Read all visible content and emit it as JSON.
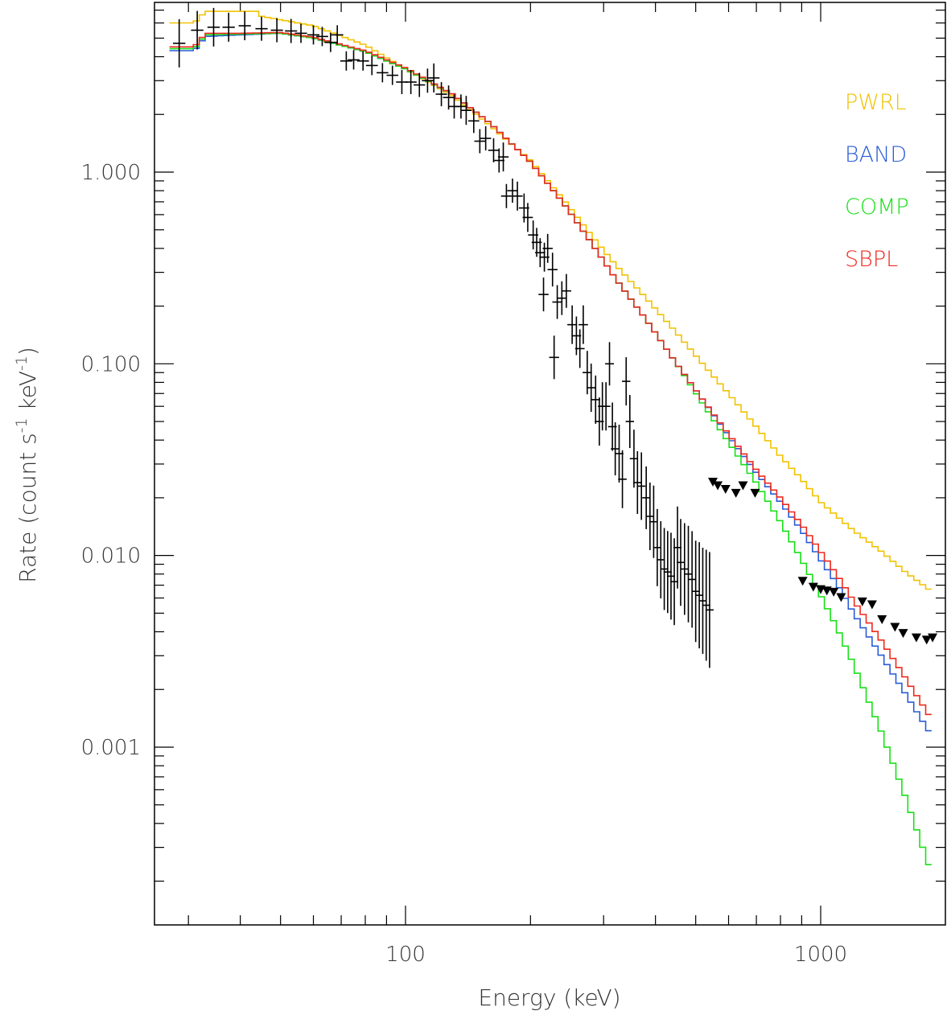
{
  "chart_data": {
    "type": "line",
    "xlabel": "Energy (keV)",
    "ylabel_parts": [
      "Rate (count s",
      "-1",
      " keV",
      "-1",
      ")"
    ],
    "x_scale": "log",
    "y_scale": "log",
    "xlim": [
      27,
      1900
    ],
    "ylim": [
      0.0002,
      7.5
    ],
    "x_ticks": [
      100,
      1000
    ],
    "x_tick_labels": [
      "100",
      "1000"
    ],
    "y_ticks": [
      0.001,
      0.01,
      0.1,
      1.0
    ],
    "y_tick_labels": [
      "0.001",
      "0.010",
      "0.100",
      "1.000"
    ],
    "legend_placement": "top-right",
    "series": [
      {
        "name": "PWRL",
        "color": "#f2c200",
        "points": [
          [
            27,
            6.0
          ],
          [
            31,
            6.0
          ],
          [
            33,
            6.9
          ],
          [
            44,
            6.9
          ],
          [
            45,
            6.5
          ],
          [
            60,
            5.8
          ],
          [
            80,
            4.6
          ],
          [
            100,
            3.45
          ],
          [
            130,
            2.5
          ],
          [
            160,
            1.75
          ],
          [
            200,
            1.15
          ],
          [
            240,
            0.72
          ],
          [
            280,
            0.47
          ],
          [
            320,
            0.33
          ],
          [
            380,
            0.22
          ],
          [
            450,
            0.145
          ],
          [
            520,
            0.1
          ],
          [
            600,
            0.07
          ],
          [
            700,
            0.047
          ],
          [
            800,
            0.033
          ],
          [
            900,
            0.025
          ],
          [
            1000,
            0.019
          ],
          [
            1200,
            0.0135
          ],
          [
            1400,
            0.0105
          ],
          [
            1600,
            0.0082
          ],
          [
            1850,
            0.0065
          ]
        ]
      },
      {
        "name": "BAND",
        "color": "#2a5bd7",
        "points": [
          [
            27,
            4.3
          ],
          [
            31,
            4.3
          ],
          [
            33,
            5.1
          ],
          [
            40,
            5.2
          ],
          [
            50,
            5.3
          ],
          [
            60,
            5.0
          ],
          [
            80,
            4.25
          ],
          [
            100,
            3.45
          ],
          [
            130,
            2.55
          ],
          [
            160,
            1.8
          ],
          [
            200,
            1.13
          ],
          [
            240,
            0.69
          ],
          [
            280,
            0.43
          ],
          [
            320,
            0.28
          ],
          [
            380,
            0.17
          ],
          [
            450,
            0.1
          ],
          [
            520,
            0.065
          ],
          [
            600,
            0.042
          ],
          [
            700,
            0.027
          ],
          [
            800,
            0.019
          ],
          [
            900,
            0.0135
          ],
          [
            1000,
            0.0095
          ],
          [
            1100,
            0.007
          ],
          [
            1200,
            0.005
          ],
          [
            1400,
            0.003
          ],
          [
            1600,
            0.0019
          ],
          [
            1850,
            0.00115
          ]
        ]
      },
      {
        "name": "COMP",
        "color": "#18e018",
        "points": [
          [
            27,
            4.4
          ],
          [
            31,
            4.4
          ],
          [
            33,
            5.2
          ],
          [
            40,
            5.25
          ],
          [
            50,
            5.3
          ],
          [
            60,
            5.0
          ],
          [
            80,
            4.25
          ],
          [
            100,
            3.45
          ],
          [
            130,
            2.55
          ],
          [
            160,
            1.8
          ],
          [
            200,
            1.13
          ],
          [
            240,
            0.69
          ],
          [
            280,
            0.43
          ],
          [
            320,
            0.28
          ],
          [
            380,
            0.17
          ],
          [
            450,
            0.1
          ],
          [
            520,
            0.062
          ],
          [
            600,
            0.039
          ],
          [
            700,
            0.024
          ],
          [
            800,
            0.015
          ],
          [
            900,
            0.0095
          ],
          [
            1000,
            0.0062
          ],
          [
            1100,
            0.0041
          ],
          [
            1200,
            0.0027
          ],
          [
            1400,
            0.0012
          ],
          [
            1600,
            0.00055
          ],
          [
            1850,
            0.00022
          ]
        ]
      },
      {
        "name": "SBPL",
        "color": "#ee2a1e",
        "points": [
          [
            27,
            4.5
          ],
          [
            31,
            4.5
          ],
          [
            33,
            5.3
          ],
          [
            40,
            5.3
          ],
          [
            50,
            5.35
          ],
          [
            60,
            5.05
          ],
          [
            80,
            4.3
          ],
          [
            100,
            3.5
          ],
          [
            130,
            2.55
          ],
          [
            160,
            1.8
          ],
          [
            200,
            1.13
          ],
          [
            240,
            0.69
          ],
          [
            280,
            0.43
          ],
          [
            320,
            0.28
          ],
          [
            380,
            0.17
          ],
          [
            450,
            0.1
          ],
          [
            520,
            0.065
          ],
          [
            600,
            0.043
          ],
          [
            700,
            0.028
          ],
          [
            800,
            0.02
          ],
          [
            900,
            0.0145
          ],
          [
            1000,
            0.0105
          ],
          [
            1100,
            0.0078
          ],
          [
            1200,
            0.0058
          ],
          [
            1400,
            0.0036
          ],
          [
            1600,
            0.0023
          ],
          [
            1850,
            0.0014
          ]
        ]
      }
    ],
    "data_points": [
      [
        28.5,
        4.7,
        0.5,
        0.3
      ],
      [
        31.5,
        5.5,
        0.4,
        0.3
      ],
      [
        34.5,
        5.7,
        0.4,
        0.3
      ],
      [
        37.5,
        5.7,
        0.3,
        0.35
      ],
      [
        41,
        5.8,
        0.3,
        0.4
      ],
      [
        45,
        5.6,
        0.25,
        0.4
      ],
      [
        49,
        5.5,
        0.25,
        0.45
      ],
      [
        53,
        5.45,
        0.25,
        0.45
      ],
      [
        56,
        5.3,
        0.2,
        0.45
      ],
      [
        60,
        5.2,
        0.2,
        0.5
      ],
      [
        63,
        5.1,
        0.2,
        0.55
      ],
      [
        66,
        4.75,
        0.2,
        0.55
      ],
      [
        68.5,
        5.2,
        0.2,
        0.55
      ],
      [
        72,
        3.8,
        0.2,
        0.55
      ],
      [
        75,
        3.85,
        0.2,
        0.6
      ],
      [
        79,
        3.8,
        0.2,
        0.6
      ],
      [
        83,
        3.6,
        0.2,
        0.65
      ],
      [
        88,
        3.3,
        0.2,
        0.7
      ],
      [
        93,
        3.2,
        0.2,
        0.7
      ],
      [
        98,
        2.95,
        0.25,
        0.75
      ],
      [
        103,
        2.95,
        0.25,
        0.8
      ],
      [
        108,
        2.85,
        0.25,
        0.85
      ],
      [
        113,
        3.0,
        0.25,
        0.9
      ],
      [
        117,
        3.1,
        0.3,
        0.9
      ],
      [
        122,
        2.55,
        0.25,
        0.95
      ],
      [
        127,
        2.45,
        0.25,
        1.0
      ],
      [
        131,
        2.2,
        0.25,
        1.05
      ],
      [
        136,
        2.2,
        0.25,
        1.1
      ],
      [
        140,
        2.1,
        0.3,
        1.1
      ],
      [
        146,
        1.85,
        0.25,
        1.15
      ],
      [
        151,
        1.45,
        0.25,
        1.2
      ],
      [
        156,
        1.5,
        0.25,
        1.25
      ],
      [
        163,
        1.3,
        0.25,
        1.3
      ],
      [
        168,
        1.15,
        0.25,
        1.35
      ],
      [
        172,
        1.2,
        0.3,
        1.35
      ],
      [
        175,
        0.75,
        0.25,
        1.4
      ],
      [
        181,
        0.8,
        0.25,
        1.45
      ],
      [
        186,
        0.75,
        0.3,
        1.5
      ],
      [
        193,
        0.65,
        0.3,
        1.55
      ],
      [
        197,
        0.58,
        0.3,
        1.6
      ],
      [
        203,
        0.47,
        0.3,
        1.65
      ],
      [
        207,
        0.43,
        0.3,
        1.7
      ],
      [
        211,
        0.38,
        0.3,
        1.7
      ],
      [
        216,
        0.36,
        0.3,
        1.75
      ],
      [
        220,
        0.4,
        0.3,
        1.75
      ],
      [
        215,
        0.23,
        0.35,
        1.75
      ],
      [
        226,
        0.31,
        0.35,
        1.8
      ],
      [
        232,
        0.21,
        0.35,
        1.85
      ],
      [
        238,
        0.22,
        0.35,
        1.9
      ],
      [
        244,
        0.24,
        0.35,
        1.95
      ],
      [
        228,
        0.108,
        0.45,
        1.85
      ],
      [
        252,
        0.16,
        0.4,
        2.0
      ],
      [
        258,
        0.14,
        0.4,
        2.05
      ],
      [
        263,
        0.12,
        0.4,
        2.1
      ],
      [
        268,
        0.16,
        0.4,
        2.15
      ],
      [
        274,
        0.09,
        0.45,
        2.2
      ],
      [
        280,
        0.075,
        0.5,
        2.25
      ],
      [
        287,
        0.065,
        0.5,
        2.3
      ],
      [
        293,
        0.05,
        0.5,
        2.35
      ],
      [
        298,
        0.06,
        0.5,
        2.4
      ],
      [
        304,
        0.06,
        0.5,
        2.45
      ],
      [
        310,
        0.1,
        0.45,
        2.5
      ],
      [
        315,
        0.047,
        0.5,
        2.55
      ],
      [
        320,
        0.036,
        0.55,
        2.6
      ],
      [
        327,
        0.034,
        0.6,
        2.65
      ],
      [
        333,
        0.025,
        0.6,
        2.7
      ],
      [
        340,
        0.081,
        0.5,
        2.75
      ],
      [
        347,
        0.05,
        0.55,
        2.8
      ],
      [
        355,
        0.032,
        0.6,
        2.85
      ],
      [
        362,
        0.024,
        0.65,
        2.9
      ],
      [
        370,
        0.023,
        0.7,
        2.95
      ],
      [
        380,
        0.02,
        0.65,
        3.0
      ],
      [
        388,
        0.016,
        0.7,
        3.05
      ],
      [
        396,
        0.015,
        0.75,
        3.1
      ],
      [
        404,
        0.011,
        0.8,
        3.15
      ],
      [
        412,
        0.0095,
        0.8,
        3.2
      ],
      [
        420,
        0.0085,
        0.85,
        3.25
      ],
      [
        428,
        0.0082,
        0.85,
        3.3
      ],
      [
        436,
        0.0078,
        0.9,
        3.35
      ],
      [
        444,
        0.0073,
        0.9,
        3.4
      ],
      [
        452,
        0.011,
        0.85,
        3.45
      ],
      [
        460,
        0.0092,
        0.9,
        3.5
      ],
      [
        470,
        0.0085,
        0.95,
        3.55
      ],
      [
        480,
        0.008,
        1.0,
        3.6
      ],
      [
        490,
        0.0075,
        1.0,
        3.65
      ],
      [
        500,
        0.0065,
        1.05,
        3.7
      ],
      [
        510,
        0.0062,
        1.1,
        3.75
      ],
      [
        520,
        0.0058,
        1.1,
        3.8
      ],
      [
        530,
        0.0055,
        1.15,
        3.85
      ],
      [
        540,
        0.0052,
        1.2,
        3.9
      ]
    ],
    "upper_limits": [
      [
        550,
        0.024
      ],
      [
        565,
        0.023
      ],
      [
        590,
        0.022
      ],
      [
        625,
        0.021
      ],
      [
        650,
        0.023
      ],
      [
        695,
        0.021
      ],
      [
        905,
        0.0073
      ],
      [
        960,
        0.0068
      ],
      [
        1000,
        0.0066
      ],
      [
        1035,
        0.0065
      ],
      [
        1075,
        0.0064
      ],
      [
        1120,
        0.006
      ],
      [
        1260,
        0.0057
      ],
      [
        1330,
        0.0055
      ],
      [
        1405,
        0.0046
      ],
      [
        1510,
        0.0042
      ],
      [
        1580,
        0.0039
      ],
      [
        1700,
        0.0037
      ],
      [
        1800,
        0.0036
      ],
      [
        1860,
        0.0037
      ]
    ]
  }
}
